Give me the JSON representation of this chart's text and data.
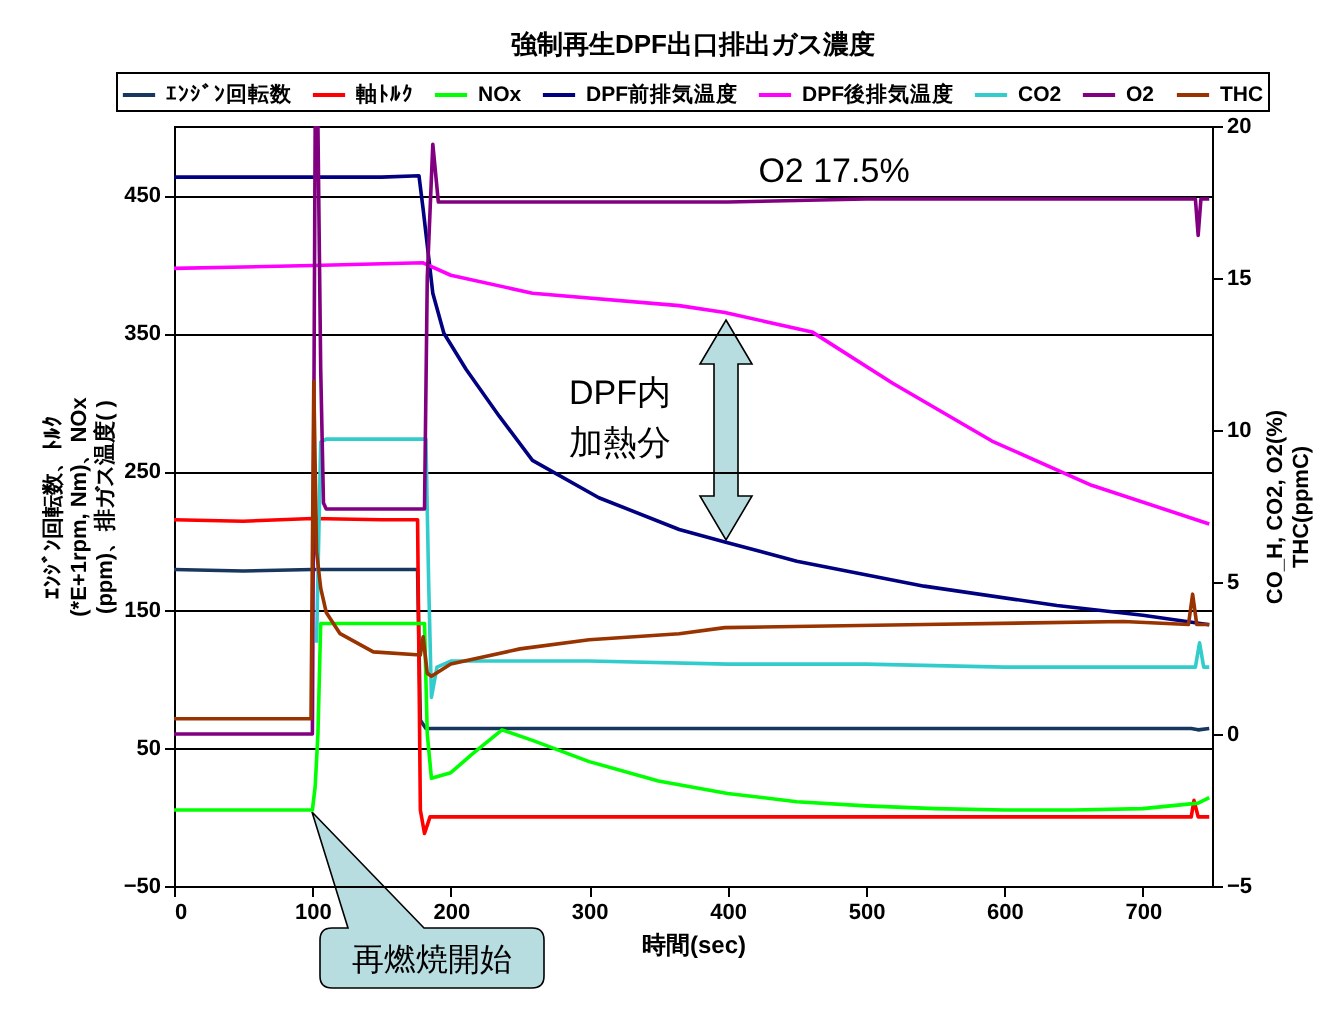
{
  "chart_data": {
    "type": "line",
    "title": "強制再生DPF出口排出ガス濃度",
    "xlabel": "時間(sec)",
    "ylabel": "ｴﾝｼﾞﾝ回転数、ﾄﾙｸ\n(*E+1rpm, Nm)、NOx\n(ppm)、排ガス温度( )",
    "y2label": "CO_H, CO2, O2(%)\nTHC(ppmC)",
    "xlim": [
      0,
      750
    ],
    "xticks": [
      0,
      100,
      200,
      300,
      400,
      500,
      600,
      700
    ],
    "ylim": [
      -50,
      500
    ],
    "yticks": [
      -50,
      50,
      150,
      250,
      350,
      450
    ],
    "y2lim": [
      -5,
      20
    ],
    "y2ticks": [
      -5,
      0,
      5,
      10,
      15,
      20
    ],
    "grid": "y",
    "legend": "top",
    "marker": "none",
    "line_style": "solid",
    "series": [
      {
        "name": "ｴﾝｼﾞﾝ回転数",
        "color": "#17375e",
        "x": [
          0,
          50,
          100,
          150,
          176,
          178,
          182,
          200,
          300,
          400,
          500,
          600,
          700,
          735,
          740,
          748
        ],
        "values": [
          179,
          178,
          179,
          179,
          179,
          70,
          64,
          64,
          64,
          64,
          64,
          64,
          64,
          64,
          63,
          64
        ]
      },
      {
        "name": "軸ﾄﾙｸ",
        "color": "#ff0000",
        "x": [
          0,
          50,
          100,
          150,
          176,
          178,
          181,
          185,
          200,
          300,
          400,
          500,
          600,
          700,
          735,
          737,
          740,
          748
        ],
        "values": [
          215,
          214,
          216,
          215,
          215,
          5,
          -12,
          0,
          0,
          0,
          0,
          0,
          0,
          0,
          0,
          12,
          0,
          0
        ]
      },
      {
        "name": "NOx",
        "color": "#00ff00",
        "x": [
          0,
          100,
          102,
          104,
          106,
          150,
          181,
          183,
          186,
          200,
          215,
          237,
          260,
          300,
          350,
          400,
          450,
          500,
          550,
          600,
          650,
          700,
          740,
          748
        ],
        "values": [
          5,
          5,
          22,
          60,
          140,
          140,
          140,
          60,
          28,
          32,
          45,
          63,
          55,
          40,
          26,
          17,
          11,
          8,
          6,
          5,
          5,
          6,
          10,
          14
        ]
      },
      {
        "name": "DPF前排気温度",
        "color": "#000080",
        "x": [
          0,
          100,
          150,
          177,
          180,
          187,
          195,
          211,
          235,
          259,
          307,
          365,
          398,
          450,
          542,
          638,
          700,
          748
        ],
        "values": [
          463,
          463,
          463,
          464,
          440,
          379,
          350,
          324,
          290,
          258,
          231,
          208,
          199,
          185,
          167,
          153,
          146,
          139
        ]
      },
      {
        "name": "DPF後排気温度",
        "color": "#ff00ff",
        "x": [
          0,
          100,
          180,
          200,
          259,
          365,
          398,
          461,
          519,
          591,
          663,
          748
        ],
        "values": [
          397,
          399,
          401,
          392,
          379,
          370,
          365,
          351,
          314,
          272,
          240,
          212
        ]
      },
      {
        "name": "CO2",
        "color": "#33cccc",
        "axis": "y2",
        "x": [
          103,
          106,
          110,
          150,
          182,
          184,
          186,
          190,
          200,
          300,
          400,
          500,
          600,
          700,
          738,
          741,
          744,
          748
        ],
        "values": [
          3,
          9.6,
          9.7,
          9.7,
          9.7,
          5,
          1.2,
          2.2,
          2.4,
          2.4,
          2.3,
          2.3,
          2.2,
          2.2,
          2.2,
          3.0,
          2.2,
          2.2
        ]
      },
      {
        "name": "O2",
        "color": "#800080",
        "axis": "y2",
        "x": [
          0,
          100,
          101,
          102,
          104,
          106,
          108,
          110,
          150,
          181,
          183,
          187,
          191,
          200,
          300,
          400,
          500,
          600,
          700,
          738,
          740,
          742,
          748
        ],
        "values": [
          0,
          0,
          10,
          20,
          20,
          12,
          7.6,
          7.4,
          7.4,
          7.4,
          15,
          19.4,
          17.5,
          17.5,
          17.5,
          17.5,
          17.6,
          17.6,
          17.6,
          17.6,
          16.4,
          17.6,
          17.6
        ]
      },
      {
        "name": "THC",
        "color": "#993300",
        "axis": "y2",
        "x": [
          0,
          99,
          100,
          101,
          103,
          106,
          110,
          120,
          144,
          178,
          180,
          183,
          186,
          200,
          250,
          300,
          365,
          398,
          542,
          686,
          733,
          736,
          739,
          748
        ],
        "values": [
          0.5,
          0.5,
          6,
          11.6,
          6,
          4.8,
          4.0,
          3.3,
          2.7,
          2.6,
          3.2,
          2.0,
          1.9,
          2.3,
          2.8,
          3.1,
          3.3,
          3.5,
          3.6,
          3.7,
          3.6,
          4.6,
          3.6,
          3.6
        ]
      }
    ],
    "annotations": [
      "O2  17.5%",
      "DPF内",
      "加熱分",
      "再燃焼開始"
    ]
  }
}
